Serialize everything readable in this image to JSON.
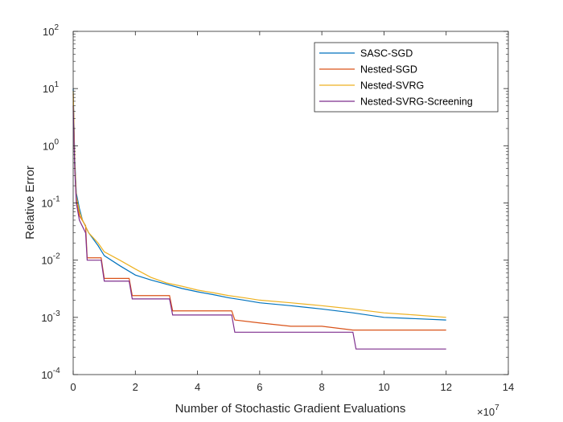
{
  "chart_data": {
    "type": "line",
    "xlabel": "Number of Stochastic Gradient Evaluations",
    "ylabel": "Relative Error",
    "x_exponent_label": "×10",
    "x_exponent_power": "7",
    "xlim": [
      0,
      14
    ],
    "x_scale_factor": 10000000,
    "xticks": [
      0,
      2,
      4,
      6,
      8,
      10,
      12,
      14
    ],
    "xtick_labels": [
      "0",
      "2",
      "4",
      "6",
      "8",
      "10",
      "12",
      "14"
    ],
    "y_scale": "log",
    "ylim": [
      0.0001,
      100
    ],
    "yticks": [
      0.0001,
      0.001,
      0.01,
      0.1,
      1,
      10,
      100
    ],
    "ytick_bases": [
      "10",
      "10",
      "10",
      "10",
      "10",
      "10",
      "10"
    ],
    "ytick_exponents": [
      "-4",
      "-3",
      "-2",
      "-1",
      "0",
      "1",
      "2"
    ],
    "grid": false,
    "legend_position": "top-right",
    "series": [
      {
        "name": "SASC-SGD",
        "color": "#0072BD",
        "x": [
          0,
          0.05,
          0.1,
          0.2,
          0.3,
          0.5,
          0.8,
          1.0,
          1.5,
          2.0,
          2.5,
          3.0,
          3.5,
          4.0,
          4.5,
          5.0,
          5.5,
          6.0,
          7.0,
          8.0,
          9.0,
          10.0,
          11.0,
          12.0
        ],
        "y": [
          10,
          0.6,
          0.15,
          0.08,
          0.05,
          0.03,
          0.018,
          0.012,
          0.008,
          0.0055,
          0.0045,
          0.0038,
          0.0032,
          0.0028,
          0.0025,
          0.0022,
          0.002,
          0.0018,
          0.0016,
          0.0014,
          0.0012,
          0.001,
          0.00095,
          0.0009
        ]
      },
      {
        "name": "Nested-SGD",
        "color": "#D95319",
        "x": [
          0,
          0.05,
          0.1,
          0.2,
          0.4,
          0.45,
          0.9,
          1.0,
          1.8,
          1.9,
          3.1,
          3.2,
          5.1,
          5.2,
          6.0,
          7.0,
          8.0,
          9.0,
          10.0,
          11.0,
          12.0
        ],
        "y": [
          8,
          0.5,
          0.12,
          0.06,
          0.04,
          0.011,
          0.011,
          0.0048,
          0.0048,
          0.0024,
          0.0024,
          0.0013,
          0.0013,
          0.0009,
          0.0008,
          0.0007,
          0.0007,
          0.0006,
          0.0006,
          0.0006,
          0.0006
        ]
      },
      {
        "name": "Nested-SVRG",
        "color": "#EDB120",
        "x": [
          0,
          0.05,
          0.1,
          0.2,
          0.3,
          0.5,
          0.8,
          1.0,
          1.5,
          2.0,
          2.5,
          3.0,
          3.5,
          4.0,
          4.5,
          5.0,
          5.5,
          6.0,
          7.0,
          8.0,
          9.0,
          10.0,
          11.0,
          12.0
        ],
        "y": [
          9,
          0.5,
          0.13,
          0.07,
          0.05,
          0.03,
          0.02,
          0.014,
          0.01,
          0.007,
          0.005,
          0.004,
          0.0035,
          0.003,
          0.0027,
          0.0024,
          0.0022,
          0.002,
          0.0018,
          0.0016,
          0.0014,
          0.0012,
          0.0011,
          0.001
        ]
      },
      {
        "name": "Nested-SVRG-Screening",
        "color": "#7E2F8E",
        "x": [
          0,
          0.05,
          0.1,
          0.2,
          0.4,
          0.45,
          0.9,
          1.0,
          1.8,
          1.9,
          3.1,
          3.2,
          5.1,
          5.2,
          9.0,
          9.1,
          12.0
        ],
        "y": [
          5,
          0.4,
          0.1,
          0.05,
          0.03,
          0.01,
          0.01,
          0.0043,
          0.0043,
          0.0021,
          0.0021,
          0.0011,
          0.0011,
          0.00055,
          0.00055,
          0.00028,
          0.00028
        ]
      }
    ]
  }
}
